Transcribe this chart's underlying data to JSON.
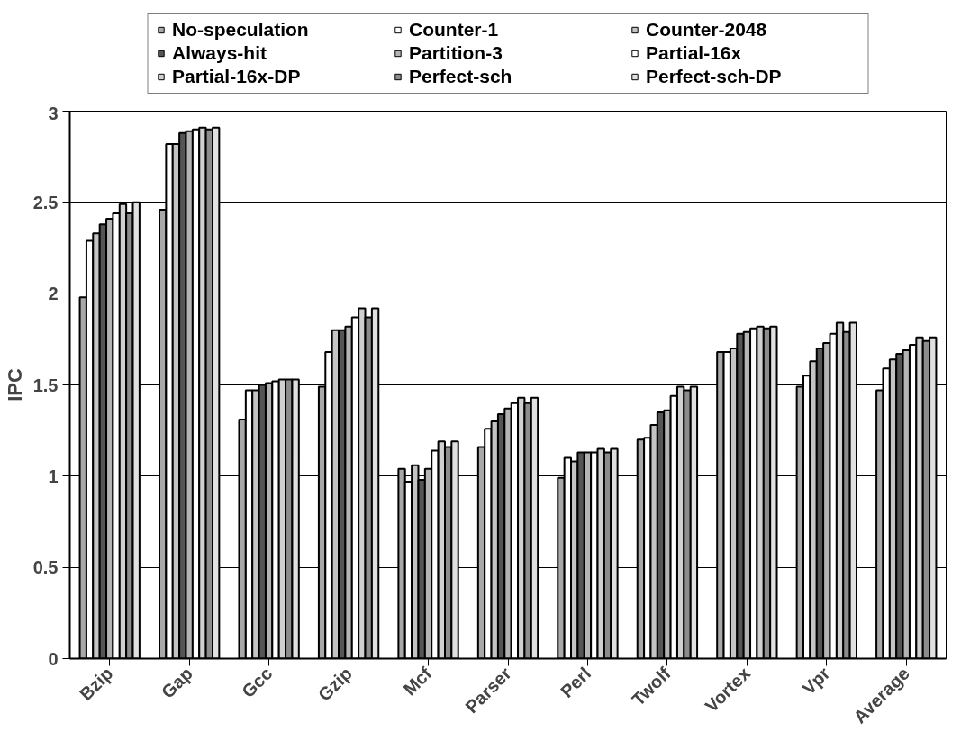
{
  "chart_data": {
    "type": "bar",
    "ylabel": "IPC",
    "categories": [
      "Bzip",
      "Gap",
      "Gcc",
      "Gzip",
      "Mcf",
      "Parser",
      "Perl",
      "Twolf",
      "Vortex",
      "Vpr",
      "Average"
    ],
    "series": [
      {
        "name": "No-speculation",
        "color": "#a8a8a8",
        "values": [
          1.98,
          2.46,
          1.31,
          1.49,
          1.04,
          1.16,
          0.99,
          1.2,
          1.68,
          1.49,
          1.47
        ]
      },
      {
        "name": "Counter-1",
        "color": "#ffffff",
        "values": [
          2.29,
          2.82,
          1.47,
          1.68,
          0.97,
          1.26,
          1.1,
          1.21,
          1.68,
          1.55,
          1.59
        ]
      },
      {
        "name": "Counter-2048",
        "color": "#c4c4c4",
        "values": [
          2.33,
          2.82,
          1.47,
          1.8,
          1.06,
          1.3,
          1.08,
          1.28,
          1.7,
          1.63,
          1.64
        ]
      },
      {
        "name": "Always-hit",
        "color": "#555555",
        "values": [
          2.38,
          2.88,
          1.5,
          1.8,
          0.98,
          1.34,
          1.13,
          1.35,
          1.78,
          1.7,
          1.67
        ]
      },
      {
        "name": "Partition-3",
        "color": "#b4b4b4",
        "values": [
          2.41,
          2.89,
          1.51,
          1.82,
          1.04,
          1.37,
          1.13,
          1.36,
          1.79,
          1.73,
          1.69
        ]
      },
      {
        "name": "Partial-16x",
        "color": "#ffffff",
        "values": [
          2.44,
          2.9,
          1.52,
          1.87,
          1.14,
          1.4,
          1.13,
          1.44,
          1.81,
          1.78,
          1.72
        ]
      },
      {
        "name": "Partial-16x-DP",
        "color": "#d0d0d0",
        "values": [
          2.49,
          2.91,
          1.53,
          1.92,
          1.19,
          1.43,
          1.15,
          1.49,
          1.82,
          1.84,
          1.76
        ]
      },
      {
        "name": "Perfect-sch",
        "color": "#8c8c8c",
        "values": [
          2.44,
          2.9,
          1.53,
          1.87,
          1.16,
          1.4,
          1.13,
          1.47,
          1.81,
          1.79,
          1.74
        ]
      },
      {
        "name": "Perfect-sch-DP",
        "color": "#e0e0e0",
        "values": [
          2.5,
          2.91,
          1.53,
          1.92,
          1.19,
          1.43,
          1.15,
          1.49,
          1.82,
          1.84,
          1.76
        ]
      }
    ],
    "ylim": [
      0,
      3
    ],
    "yticks": [
      0,
      0.5,
      1,
      1.5,
      2,
      2.5,
      3
    ],
    "grid": "y",
    "legend": "top"
  }
}
